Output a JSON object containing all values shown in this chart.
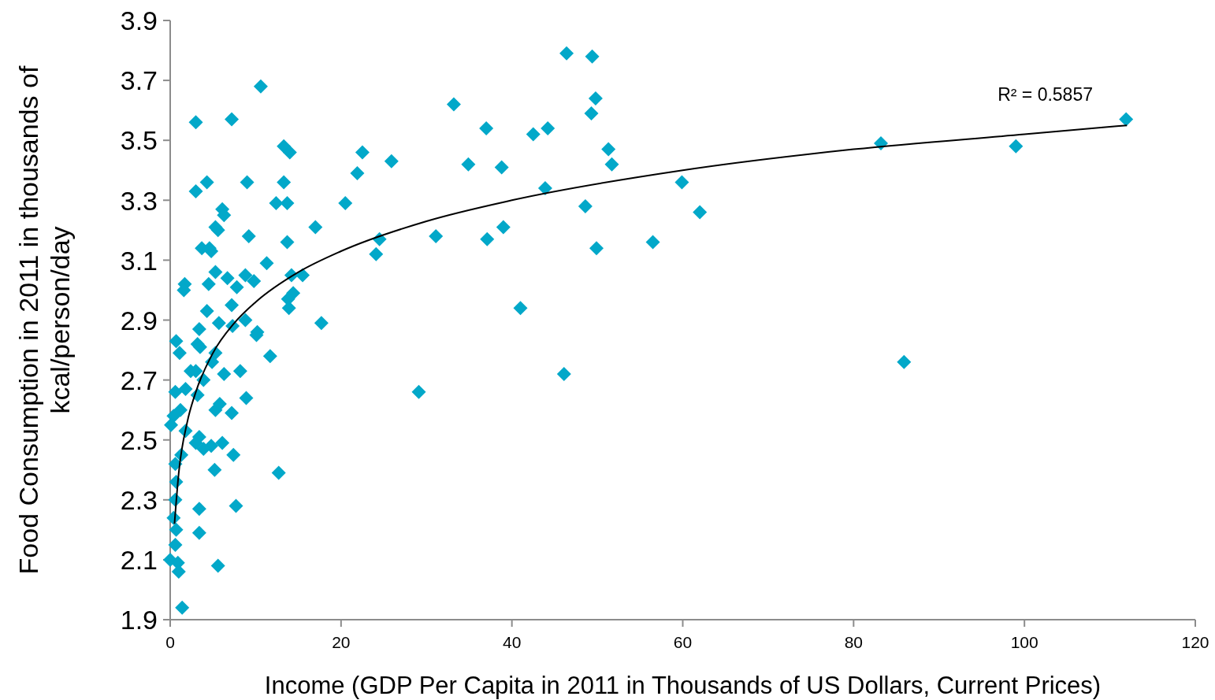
{
  "chart_data": {
    "type": "scatter",
    "xlabel": "Income (GDP Per Capita in 2011 in Thousands of US Dollars, Current Prices)",
    "ylabel": "Food Consumption in 2011 in thousands of kcal/person/day",
    "xlim": [
      0,
      120
    ],
    "xticks": [
      0,
      20,
      40,
      60,
      80,
      100,
      120
    ],
    "ylim": [
      1.9,
      3.9
    ],
    "yticks": [
      1.9,
      2.1,
      2.3,
      2.5,
      2.7,
      2.9,
      3.1,
      3.3,
      3.5,
      3.7,
      3.9
    ],
    "grid": false,
    "annotations": [
      "R² = 0.5857"
    ],
    "series": [
      {
        "color": "#02a8c9",
        "marker": "diamond",
        "x": [
          46.4,
          49.4,
          10.6,
          3.0,
          7.2,
          111.9,
          33.2,
          49.8,
          37.0,
          42.5,
          44.2,
          49.3,
          13.3,
          14.0,
          22.5,
          51.3,
          83.2,
          99.0,
          21.9,
          25.9,
          34.9,
          38.8,
          51.7,
          3.0,
          4.3,
          9.0,
          13.3,
          13.7,
          12.4,
          6.1,
          6.3,
          20.5,
          43.9,
          48.6,
          59.9,
          62.0,
          5.3,
          5.6,
          17.0,
          9.2,
          24.5,
          31.1,
          37.1,
          39.0,
          13.7,
          3.7,
          4.6,
          4.8,
          49.9,
          56.5,
          24.1,
          11.3,
          5.3,
          6.7,
          8.8,
          9.8,
          14.2,
          15.5,
          1.7,
          1.6,
          4.5,
          7.8,
          4.3,
          7.2,
          14.4,
          13.8,
          13.9,
          41.0,
          5.7,
          7.3,
          8.8,
          17.7,
          3.4,
          10.2,
          10.1,
          0.7,
          3.2,
          3.5,
          1.1,
          5.3,
          11.7,
          85.9,
          4.9,
          2.4,
          3.0,
          3.9,
          6.3,
          8.2,
          46.1,
          0.6,
          1.8,
          3.2,
          8.9,
          29.1,
          1.2,
          5.3,
          5.8,
          7.2,
          0.4,
          0.1,
          1.8,
          3.4,
          6.1,
          3.0,
          4.8,
          3.9,
          1.3,
          7.4,
          0.6,
          5.2,
          12.7,
          0.7,
          0.6,
          3.4,
          7.7,
          0.4,
          0.7,
          3.4,
          0.6,
          0.0,
          0.9,
          5.6,
          1.0,
          1.4
        ],
        "values": [
          3.79,
          3.78,
          3.68,
          3.56,
          3.57,
          3.57,
          3.62,
          3.64,
          3.54,
          3.52,
          3.54,
          3.59,
          3.48,
          3.46,
          3.46,
          3.47,
          3.49,
          3.48,
          3.39,
          3.43,
          3.42,
          3.41,
          3.42,
          3.33,
          3.36,
          3.36,
          3.36,
          3.29,
          3.29,
          3.27,
          3.25,
          3.29,
          3.34,
          3.28,
          3.36,
          3.26,
          3.21,
          3.2,
          3.21,
          3.18,
          3.17,
          3.18,
          3.17,
          3.21,
          3.16,
          3.14,
          3.14,
          3.13,
          3.14,
          3.16,
          3.12,
          3.09,
          3.06,
          3.04,
          3.05,
          3.03,
          3.05,
          3.05,
          3.02,
          3.0,
          3.02,
          3.01,
          2.93,
          2.95,
          2.99,
          2.97,
          2.94,
          2.94,
          2.89,
          2.88,
          2.9,
          2.89,
          2.87,
          2.86,
          2.85,
          2.83,
          2.82,
          2.81,
          2.79,
          2.79,
          2.78,
          2.76,
          2.76,
          2.73,
          2.73,
          2.7,
          2.72,
          2.73,
          2.72,
          2.66,
          2.67,
          2.65,
          2.64,
          2.66,
          2.6,
          2.6,
          2.62,
          2.59,
          2.58,
          2.55,
          2.53,
          2.51,
          2.49,
          2.49,
          2.48,
          2.47,
          2.45,
          2.45,
          2.42,
          2.4,
          2.39,
          2.36,
          2.3,
          2.27,
          2.28,
          2.24,
          2.2,
          2.19,
          2.15,
          2.1,
          2.09,
          2.08,
          2.06,
          1.94
        ]
      },
      {
        "type": "line",
        "color": "#000000",
        "marker": "none",
        "line_style": "solid",
        "x": [
          0.5,
          1,
          2,
          3,
          5,
          7.5,
          10,
          15,
          20,
          30,
          40,
          60,
          80,
          100,
          112
        ],
        "values": [
          2.22,
          2.39,
          2.56,
          2.66,
          2.79,
          2.89,
          2.96,
          3.06,
          3.13,
          3.23,
          3.3,
          3.4,
          3.47,
          3.52,
          3.55
        ]
      }
    ]
  }
}
